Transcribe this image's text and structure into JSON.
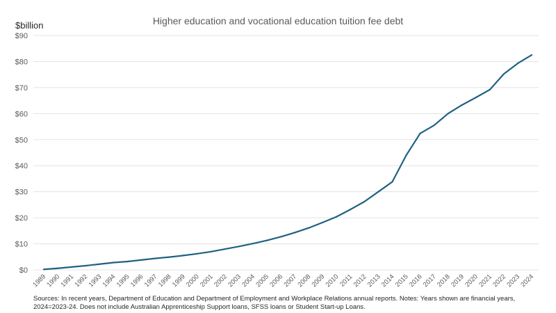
{
  "chart_data": {
    "type": "line",
    "title": "Higher education and vocational education tuition fee debt",
    "ylabel": "$billion",
    "xlabel": "",
    "ylim": [
      0,
      90
    ],
    "yticks": [
      "$0",
      "$10",
      "$20",
      "$30",
      "$40",
      "$50",
      "$60",
      "$70",
      "$80",
      "$90"
    ],
    "grid": true,
    "line_color": "#1F6182",
    "x": [
      1989,
      1990,
      1991,
      1992,
      1993,
      1994,
      1995,
      1996,
      1997,
      1998,
      1999,
      2000,
      2001,
      2002,
      2003,
      2004,
      2005,
      2006,
      2007,
      2008,
      2009,
      2010,
      2011,
      2012,
      2013,
      2014,
      2015,
      2016,
      2017,
      2018,
      2019,
      2020,
      2021,
      2022,
      2023,
      2024
    ],
    "values": [
      0.2,
      0.6,
      1.1,
      1.6,
      2.2,
      2.8,
      3.2,
      3.8,
      4.4,
      4.9,
      5.5,
      6.2,
      7.0,
      8.0,
      9.0,
      10.1,
      11.3,
      12.7,
      14.3,
      16.1,
      18.2,
      20.4,
      23.2,
      26.2,
      30.0,
      33.8,
      44.0,
      52.4,
      55.5,
      60.0,
      63.3,
      66.2,
      69.2,
      75.2,
      79.3,
      82.5
    ]
  },
  "notes": "Sources: In recent years, Department of Education and Department of Employment and Workplace Relations annual reports. Notes: Years shown are financial years, 2024=2023-24.  Does not include Australian Apprenticeship Support loans, SFSS loans or Student Start-up Loans."
}
